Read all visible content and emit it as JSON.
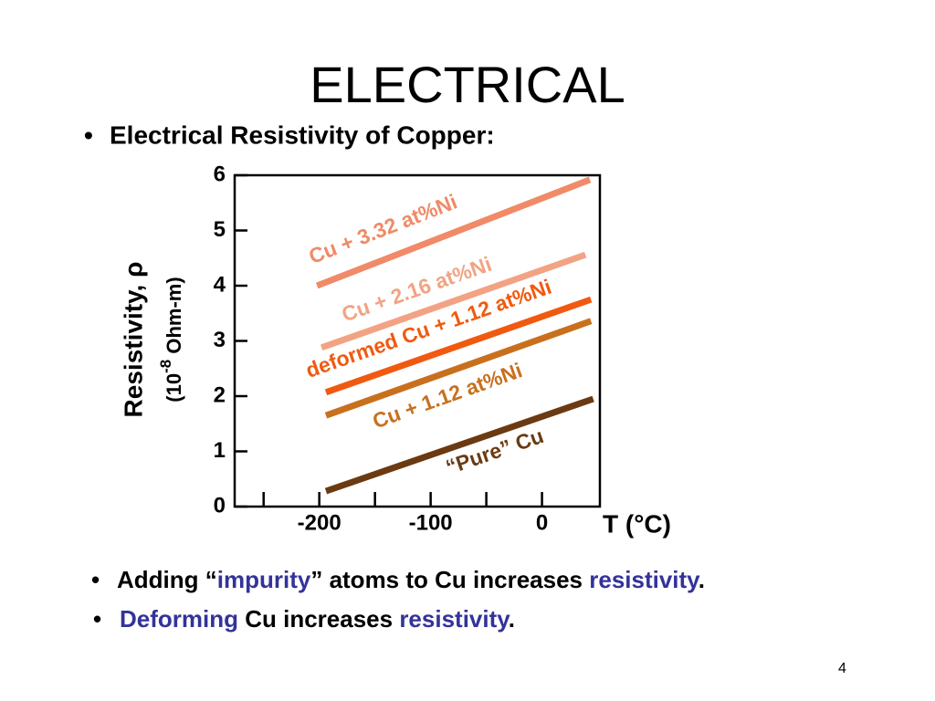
{
  "title": "ELECTRICAL",
  "bullets_top": [
    "Electrical Resistivity of Copper:"
  ],
  "chart_data": {
    "type": "line",
    "ylabel": "Resistivity, ρ",
    "ylabel_units": [
      "(10",
      "-8",
      " Ohm-m)"
    ],
    "xlabel": "T (°C)",
    "xlim": [
      -276,
      52
    ],
    "xticks": [
      -200,
      -100,
      0
    ],
    "xminor_ticks": [
      -250,
      -150,
      -50
    ],
    "ylim": [
      0,
      6
    ],
    "yticks": [
      0,
      1,
      2,
      3,
      4,
      5,
      6
    ],
    "series": [
      {
        "name": "Cu + 3.32 at%Ni",
        "color": "#f08a68",
        "x": [
          -202,
          43
        ],
        "values": [
          4.0,
          5.92
        ]
      },
      {
        "name": "Cu + 2.16 at%Ni",
        "color": "#f2a384",
        "x": [
          -198,
          39
        ],
        "values": [
          2.88,
          4.56
        ]
      },
      {
        "name": "deformed Cu + 1.12 at%Ni",
        "color": "#f05a10",
        "x": [
          -194,
          44
        ],
        "values": [
          2.07,
          3.75
        ]
      },
      {
        "name": "Cu + 1.12 at%Ni",
        "color": "#c8701e",
        "x": [
          -194,
          44
        ],
        "values": [
          1.65,
          3.36
        ]
      },
      {
        "name": "“Pure” Cu",
        "color": "#6b3a12",
        "x": [
          -194,
          46
        ],
        "values": [
          0.28,
          1.95
        ]
      }
    ]
  },
  "bullets_bottom": [
    [
      {
        "text": "Adding “"
      },
      {
        "text": "impurity",
        "highlight": true
      },
      {
        "text": "” atoms to Cu increases "
      },
      {
        "text": "resistivity",
        "highlight": true
      },
      {
        "text": "."
      }
    ],
    [
      {
        "text": "Deforming",
        "highlight": true
      },
      {
        "text": " Cu increases "
      },
      {
        "text": "resistivity",
        "highlight": true
      },
      {
        "text": "."
      }
    ]
  ],
  "page_number": "4"
}
